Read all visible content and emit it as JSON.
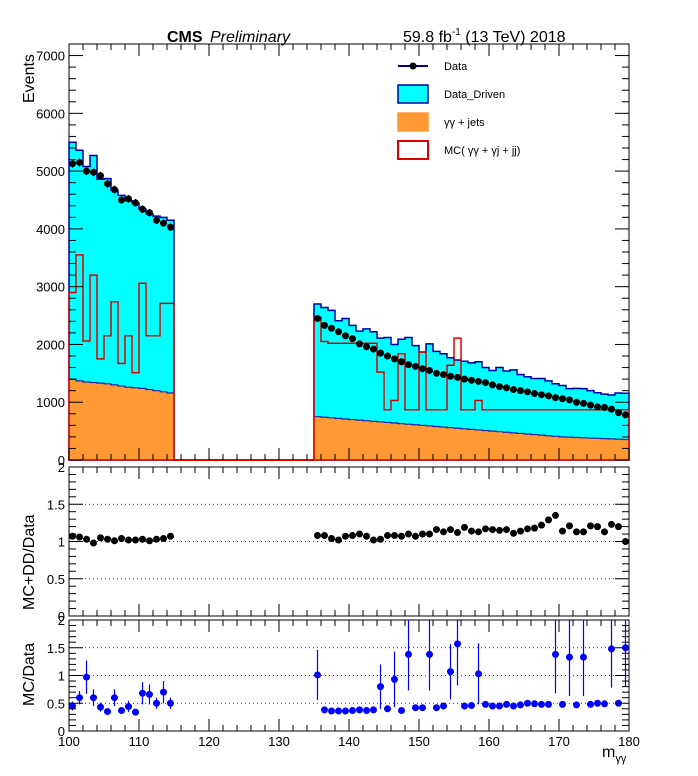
{
  "header": {
    "experiment": "CMS",
    "status": "Preliminary",
    "lumi_value": "59.8 fb",
    "lumi_exp": "-1",
    "lumi_rest": " (13 TeV) 2018"
  },
  "legend": [
    {
      "label": "Data",
      "style": "marker-line",
      "color": "#000000",
      "line_color": "#000099"
    },
    {
      "label": "Data_Driven",
      "style": "fill",
      "color": "#00ffff",
      "line_color": "#0000aa"
    },
    {
      "label": "γγ + jets",
      "style": "fill",
      "color": "#ff9933",
      "line_color": "#ff9933"
    },
    {
      "label": "MC( γγ + γj + jj)",
      "style": "line",
      "color": "#ffffff",
      "line_color": "#dd0000"
    }
  ],
  "axes": {
    "xlabel_main": "m",
    "xlabel_sub": "γγ",
    "top_ylabel": "Events",
    "mid_ylabel": "MC+DD/Data",
    "bot_ylabel": "MC/Data",
    "x_ticks": [
      "100",
      "110",
      "120",
      "130",
      "140",
      "150",
      "160",
      "170",
      "180"
    ],
    "top_y_ticks": [
      "0",
      "1000",
      "2000",
      "3000",
      "4000",
      "5000",
      "6000",
      "7000"
    ],
    "ratio_y_ticks": [
      "0",
      "0.5",
      "1",
      "1.5",
      "2"
    ]
  },
  "chart_data": [
    {
      "type": "histogram",
      "panel": "main",
      "xlim": [
        100,
        180
      ],
      "ylim": [
        0,
        7200
      ],
      "bin_width": 1,
      "blinded_region": [
        115,
        135
      ],
      "bin_centers": [
        100.5,
        101.5,
        102.5,
        103.5,
        104.5,
        105.5,
        106.5,
        107.5,
        108.5,
        109.5,
        110.5,
        111.5,
        112.5,
        113.5,
        114.5,
        135.5,
        136.5,
        137.5,
        138.5,
        139.5,
        140.5,
        141.5,
        142.5,
        143.5,
        144.5,
        145.5,
        146.5,
        147.5,
        148.5,
        149.5,
        150.5,
        151.5,
        152.5,
        153.5,
        154.5,
        155.5,
        156.5,
        157.5,
        158.5,
        159.5,
        160.5,
        161.5,
        162.5,
        163.5,
        164.5,
        165.5,
        166.5,
        167.5,
        168.5,
        169.5,
        170.5,
        171.5,
        172.5,
        173.5,
        174.5,
        175.5,
        176.5,
        177.5,
        178.5,
        179.5
      ],
      "series": [
        {
          "name": "Data",
          "kind": "points",
          "values": [
            5130,
            5150,
            5000,
            4980,
            4920,
            4780,
            4680,
            4500,
            4520,
            4450,
            4340,
            4280,
            4150,
            4100,
            4030,
            2450,
            2330,
            2280,
            2220,
            2150,
            2100,
            2010,
            1960,
            1920,
            1850,
            1800,
            1750,
            1700,
            1650,
            1620,
            1580,
            1550,
            1500,
            1480,
            1450,
            1430,
            1400,
            1380,
            1360,
            1340,
            1300,
            1270,
            1250,
            1220,
            1200,
            1180,
            1150,
            1130,
            1110,
            1080,
            1060,
            1040,
            1000,
            980,
            950,
            920,
            910,
            880,
            820,
            780
          ],
          "errors": [
            70,
            70,
            70,
            70,
            70,
            69,
            68,
            67,
            67,
            67,
            66,
            65,
            64,
            64,
            63,
            50,
            48,
            48,
            47,
            46,
            46,
            45,
            44,
            44,
            43,
            42,
            42,
            41,
            41,
            40,
            40,
            39,
            39,
            38,
            38,
            38,
            37,
            37,
            37,
            37,
            36,
            36,
            35,
            35,
            35,
            34,
            34,
            34,
            33,
            33,
            33,
            32,
            32,
            31,
            31,
            30,
            30,
            30,
            29,
            28
          ]
        },
        {
          "name": "Data_Driven",
          "kind": "stacked-fill",
          "values": [
            4100,
            3990,
            3730,
            3930,
            3530,
            3550,
            3370,
            3300,
            3230,
            3200,
            3100,
            3040,
            3020,
            3020,
            2990,
            1950,
            1900,
            1860,
            1690,
            1740,
            1630,
            1540,
            1590,
            1550,
            1450,
            1470,
            1360,
            1460,
            1500,
            1370,
            1270,
            1420,
            1300,
            1270,
            1210,
            1180,
            1170,
            1150,
            1180,
            1090,
            1050,
            1110,
            1060,
            1090,
            1020,
            990,
            970,
            980,
            950,
            910,
            890,
            840,
            850,
            850,
            820,
            790,
            770,
            760,
            800,
            800
          ]
        },
        {
          "name": "γγ + jets",
          "kind": "stacked-fill",
          "values": [
            1400,
            1370,
            1350,
            1340,
            1330,
            1320,
            1300,
            1280,
            1260,
            1250,
            1240,
            1220,
            1200,
            1180,
            1160,
            750,
            740,
            730,
            720,
            710,
            700,
            690,
            680,
            670,
            660,
            650,
            640,
            630,
            620,
            610,
            600,
            590,
            580,
            570,
            560,
            550,
            540,
            530,
            520,
            510,
            500,
            490,
            480,
            470,
            460,
            450,
            440,
            430,
            420,
            410,
            400,
            395,
            390,
            385,
            380,
            375,
            370,
            365,
            360,
            355
          ]
        },
        {
          "name": "MC( γγ + γj + jj)",
          "kind": "step-line",
          "values": [
            2900,
            3550,
            2060,
            3200,
            1750,
            2150,
            2740,
            1670,
            2150,
            1510,
            3060,
            2150,
            2150,
            2710,
            2710,
            2470,
            2050,
            2020,
            2020,
            2020,
            2020,
            2020,
            2020,
            2020,
            1520,
            870,
            1030,
            1840,
            870,
            870,
            1870,
            870,
            870,
            870,
            1640,
            2110,
            870,
            870,
            1030,
            870,
            870,
            870,
            870,
            870,
            870,
            870,
            870,
            870,
            870,
            870,
            870,
            870,
            870,
            870,
            870,
            870,
            870,
            870,
            870,
            870
          ]
        }
      ]
    },
    {
      "type": "scatter",
      "panel": "ratio_total",
      "ylim": [
        0,
        2
      ],
      "series": [
        {
          "name": "MC+DD/Data",
          "values": [
            1.07,
            1.06,
            1.03,
            0.98,
            1.05,
            1.03,
            1.01,
            1.04,
            1.02,
            1.02,
            1.03,
            1.01,
            1.03,
            1.04,
            1.07,
            1.08,
            1.08,
            1.04,
            1.02,
            1.07,
            1.08,
            1.1,
            1.07,
            1.02,
            1.03,
            1.08,
            1.08,
            1.07,
            1.1,
            1.07,
            1.1,
            1.1,
            1.16,
            1.13,
            1.16,
            1.12,
            1.19,
            1.14,
            1.13,
            1.17,
            1.16,
            1.15,
            1.16,
            1.11,
            1.14,
            1.17,
            1.18,
            1.22,
            1.29,
            1.35,
            1.14,
            1.21,
            1.13,
            1.13,
            1.21,
            1.2,
            1.13,
            1.23,
            1.2,
            1.0
          ]
        }
      ]
    },
    {
      "type": "scatter",
      "panel": "ratio_mc",
      "ylim": [
        0,
        2
      ],
      "series": [
        {
          "name": "MC/Data",
          "values": [
            0.45,
            0.6,
            0.97,
            0.6,
            0.43,
            0.35,
            0.6,
            0.37,
            0.44,
            0.34,
            0.68,
            0.66,
            0.5,
            0.7,
            0.5,
            1.01,
            0.38,
            0.36,
            0.36,
            0.36,
            0.37,
            0.38,
            0.37,
            0.38,
            0.8,
            0.4,
            0.93,
            0.37,
            1.38,
            0.42,
            0.42,
            1.38,
            0.42,
            0.45,
            1.07,
            1.57,
            0.45,
            0.46,
            1.03,
            0.48,
            0.45,
            0.45,
            0.48,
            0.45,
            0.47,
            0.5,
            0.49,
            0.48,
            0.48,
            1.38,
            0.48,
            1.33,
            0.47,
            1.33,
            0.48,
            0.5,
            0.49,
            1.48,
            0.5,
            1.5
          ],
          "errors": [
            0.08,
            0.12,
            0.3,
            0.15,
            0.08,
            0.06,
            0.15,
            0.06,
            0.1,
            0.05,
            0.2,
            0.18,
            0.1,
            0.2,
            0.1,
            0.45,
            0.03,
            0.03,
            0.03,
            0.03,
            0.03,
            0.03,
            0.03,
            0.03,
            0.4,
            0.05,
            0.5,
            0.03,
            0.65,
            0.05,
            0.05,
            0.65,
            0.05,
            0.05,
            0.5,
            0.75,
            0.05,
            0.05,
            0.55,
            0.05,
            0.05,
            0.05,
            0.05,
            0.05,
            0.05,
            0.05,
            0.05,
            0.05,
            0.05,
            0.7,
            0.05,
            0.7,
            0.05,
            0.7,
            0.05,
            0.05,
            0.05,
            0.7,
            0.05,
            0.7
          ]
        }
      ]
    }
  ]
}
